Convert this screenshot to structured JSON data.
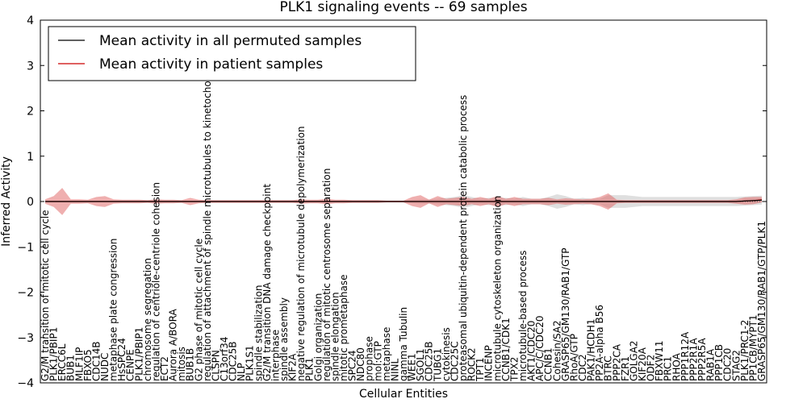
{
  "chart_data": {
    "type": "line",
    "title": "PLK1 signaling events -- 69 samples",
    "xlabel": "Cellular Entities",
    "ylabel": "Inferred Activity",
    "ylim": [
      -4,
      4
    ],
    "yticks": [
      "−4",
      "−3",
      "−2",
      "−1",
      "0",
      "1",
      "2",
      "3",
      "4"
    ],
    "grid": false,
    "legend": {
      "position": "top-left",
      "entries": [
        {
          "name": "Mean activity in all permuted samples",
          "color": "#000000"
        },
        {
          "name": "Mean activity in patient samples",
          "color": "#cc0000"
        }
      ]
    },
    "categories": [
      "G2/M transition of mitotic cell cycle",
      "PLK1/PBIP1",
      "ERCC6L",
      "BUB1",
      "MLF1IP",
      "FBXO5",
      "CDC14B",
      "NUDC",
      "metaphase plate congression",
      "HsSPC24",
      "CENPE",
      "PLK1/PBIP1",
      "chromosome segregation",
      "regulation of centriole-centriole cohesion",
      "ECT2",
      "Aurora A/BORA",
      "mitosis",
      "BUB1B",
      "G2 phase of mitotic cell cycle",
      "regulation of attachment of spindle microtubules to kinetochore",
      "CLSPN",
      "C13orf34",
      "CDC25B",
      "NLP",
      "PLK1S1",
      "spindle stabilization",
      "G2/M transition DNA damage checkpoint",
      "interphase",
      "spindle assembly",
      "KIF2A",
      "negative regulation of microtubule depolymerization",
      "PLK1",
      "Golgi organization",
      "regulation of mitotic centrosome separation",
      "spindle elongation",
      "mitotic prometaphase",
      "SPC24",
      "NDC80",
      "prophase",
      "mol:GTP",
      "metaphase",
      "NINL",
      "gamma Tubulin",
      "WEE1",
      "SGOL1",
      "CDC25B",
      "TUBG1",
      "cytokinesis",
      "CDC25C",
      "proteasomal ubiquitin-dependent protein catabolic process",
      "ROCK2",
      "TPT1",
      "INCENP",
      "microtubule cytoskeleton organization",
      "CCNB1/CDK1",
      "TPX2",
      "microtubule-based process",
      "AKT1/CDC20",
      "APC/C/CDC20",
      "CCNB1",
      "Cohesin/SA2",
      "GRASP65/GM130/RAB1/GTP",
      "RhoA/GTP",
      "CDC2",
      "PAK1/HCDH1",
      "PP2A-alpha B56",
      "BTRC",
      "PPP2CA",
      "FZR1",
      "GOLGA2",
      "KIF20A",
      "ODF2",
      "FBXW11",
      "PRC1",
      "RHOA",
      "PPP1R12A",
      "PPP2R1A",
      "PPP2R5A",
      "RAB1A",
      "PPP1CB",
      "CDC20",
      "STAG2",
      "PLK1/PRC1-2",
      "PP1CB/MYPT1",
      "GRASP65/GM130/RAB1/GTP/PLK1"
    ],
    "series": [
      {
        "name": "Mean activity in patient samples",
        "color": "#cc0000",
        "values": [
          0,
          0,
          0,
          0,
          0,
          0,
          0,
          0,
          0,
          0,
          0,
          0,
          0,
          0,
          0,
          0,
          0,
          0,
          0,
          0,
          0,
          0,
          0,
          0,
          0,
          0,
          0,
          0,
          0,
          0,
          0,
          0,
          0,
          0,
          0,
          0,
          0,
          0,
          0,
          0,
          0,
          0,
          0,
          0,
          0,
          0,
          0,
          0,
          0,
          0,
          0,
          0,
          0,
          0,
          0,
          0,
          0,
          0,
          0,
          0,
          0,
          0,
          0,
          0,
          0,
          0,
          0,
          0,
          0,
          0,
          0,
          0,
          0,
          0,
          0,
          0,
          0,
          0,
          0,
          0,
          0,
          0,
          0.01,
          0.02,
          0.04
        ],
        "spread": [
          0.05,
          0.12,
          0.3,
          0.05,
          0.05,
          0.04,
          0.1,
          0.12,
          0.05,
          0.04,
          0.04,
          0.04,
          0.03,
          0.05,
          0.04,
          0.04,
          0.03,
          0.08,
          0.04,
          0.03,
          0.03,
          0.03,
          0.03,
          0.03,
          0.03,
          0.03,
          0.03,
          0.03,
          0.03,
          0.03,
          0.05,
          0.04,
          0.04,
          0.06,
          0.04,
          0.04,
          0.03,
          0.03,
          0.03,
          0.03,
          0.02,
          0.02,
          0.02,
          0.1,
          0.14,
          0.04,
          0.12,
          0.06,
          0.08,
          0.1,
          0.06,
          0.1,
          0.06,
          0.12,
          0.06,
          0.1,
          0.06,
          0.06,
          0.06,
          0.08,
          0.05,
          0.07,
          0.06,
          0.05,
          0.06,
          0.1,
          0.18,
          0.04,
          0.03,
          0.03,
          0.03,
          0.03,
          0.03,
          0.03,
          0.03,
          0.03,
          0.03,
          0.03,
          0.03,
          0.03,
          0.03,
          0.05,
          0.08,
          0.08,
          0.06
        ]
      },
      {
        "name": "Mean activity in all permuted samples",
        "color": "#000000",
        "values": [
          0,
          0,
          0,
          0,
          0,
          0,
          0,
          0,
          0,
          0,
          0,
          0,
          0,
          0,
          0,
          0,
          0,
          0,
          0,
          0,
          0,
          0,
          0,
          0,
          0,
          0,
          0,
          0,
          0,
          0,
          0,
          0,
          0,
          0,
          0,
          0,
          0,
          0,
          0,
          0,
          0,
          0,
          0,
          0,
          0,
          0,
          0,
          0,
          0,
          0,
          0,
          0,
          0,
          0,
          0,
          0,
          0,
          0,
          0,
          0,
          0,
          0,
          0,
          0,
          0,
          0,
          0,
          0,
          0,
          0,
          0,
          0,
          0,
          0,
          0,
          0,
          0,
          0,
          0,
          0,
          0,
          0,
          0.01,
          0.02,
          0.03
        ],
        "spread": [
          0.02,
          0.02,
          0.02,
          0.02,
          0.02,
          0.02,
          0.02,
          0.02,
          0.02,
          0.02,
          0.02,
          0.02,
          0.02,
          0.02,
          0.02,
          0.02,
          0.02,
          0.02,
          0.02,
          0.02,
          0.02,
          0.02,
          0.02,
          0.02,
          0.02,
          0.02,
          0.02,
          0.02,
          0.02,
          0.02,
          0.02,
          0.02,
          0.02,
          0.02,
          0.02,
          0.02,
          0.02,
          0.02,
          0.02,
          0.02,
          0.02,
          0.02,
          0.02,
          0.04,
          0.05,
          0.05,
          0.06,
          0.08,
          0.1,
          0.14,
          0.1,
          0.06,
          0.08,
          0.08,
          0.08,
          0.06,
          0.1,
          0.06,
          0.06,
          0.1,
          0.16,
          0.12,
          0.06,
          0.08,
          0.06,
          0.06,
          0.14,
          0.14,
          0.14,
          0.12,
          0.1,
          0.1,
          0.1,
          0.1,
          0.1,
          0.1,
          0.1,
          0.1,
          0.1,
          0.1,
          0.1,
          0.1,
          0.1,
          0.1,
          0.1
        ]
      }
    ]
  }
}
